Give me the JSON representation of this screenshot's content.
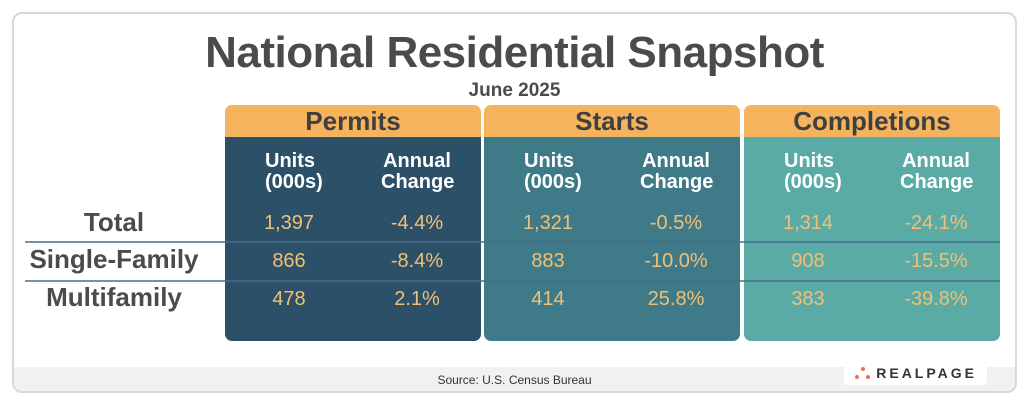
{
  "title": "National Residential Snapshot",
  "subtitle": "June 2025",
  "source": "Source: U.S. Census Bureau",
  "logo": "REALPAGE",
  "colors": {
    "header": "#f5b35e",
    "permits": "#2b5068",
    "starts": "#3f7a88",
    "completions": "#5aaba6",
    "values": "#f2c074"
  },
  "chart_data": {
    "type": "table",
    "row_labels": [
      "Total",
      "Single-Family",
      "Multifamily"
    ],
    "groups": [
      {
        "name": "Permits",
        "col_units": "Units (000s)",
        "col_change": "Annual Change",
        "units": [
          "1,397",
          "866",
          "478"
        ],
        "change": [
          "-4.4%",
          "-8.4%",
          "2.1%"
        ]
      },
      {
        "name": "Starts",
        "col_units": "Units (000s)",
        "col_change": "Annual Change",
        "units": [
          "1,321",
          "883",
          "414"
        ],
        "change": [
          "-0.5%",
          "-10.0%",
          "25.8%"
        ]
      },
      {
        "name": "Completions",
        "col_units": "Units (000s)",
        "col_change": "Annual Change",
        "units": [
          "1,314",
          "908",
          "383"
        ],
        "change": [
          "-24.1%",
          "-15.5%",
          "-39.8%"
        ]
      }
    ]
  }
}
